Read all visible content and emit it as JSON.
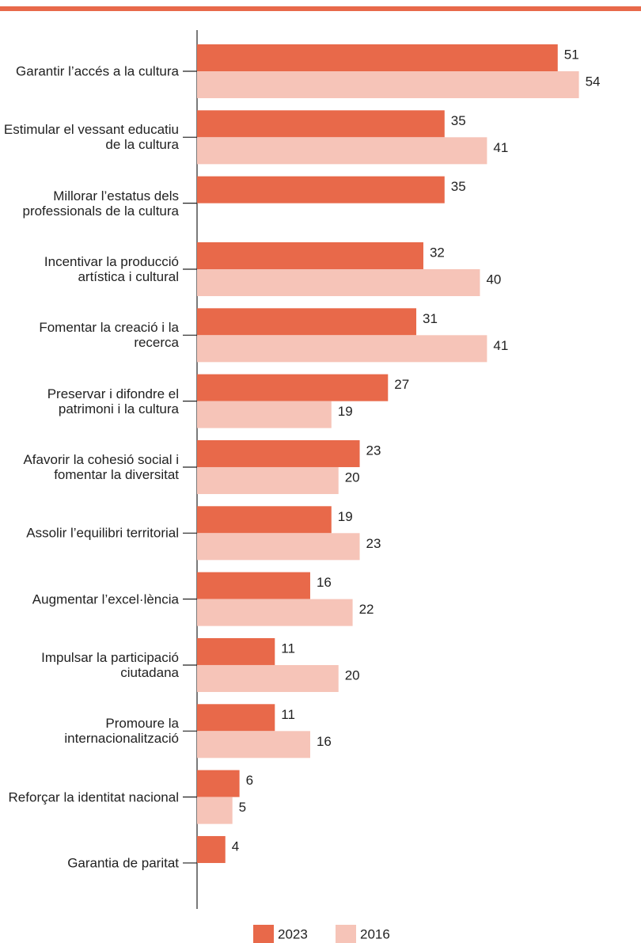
{
  "chart_data": {
    "type": "bar",
    "orientation": "horizontal",
    "categories": [
      "Garantir l’accés a la cultura",
      "Estimular el vessant educatiu de la cultura",
      "Millorar l’estatus dels professionals de la cultura",
      "Incentivar la producció artística i cultural",
      "Fomentar la creació i la recerca",
      "Preservar i difondre el patrimoni i la cultura",
      "Afavorir la cohesió social i fomentar la diversitat",
      "Assolir l’equilibri territorial",
      "Augmentar l’excel·lència",
      "Impulsar la participació ciutadana",
      "Promoure la internacionalització",
      "Reforçar la identitat nacional",
      "Garantia de paritat"
    ],
    "series": [
      {
        "name": "2023",
        "color": "#e8694a",
        "values": [
          51,
          35,
          35,
          32,
          31,
          27,
          23,
          19,
          16,
          11,
          11,
          6,
          4
        ]
      },
      {
        "name": "2016",
        "color": "#f6c4b8",
        "values": [
          54,
          41,
          null,
          40,
          41,
          19,
          20,
          23,
          22,
          20,
          16,
          5,
          null
        ]
      }
    ],
    "xlim": [
      0,
      63
    ],
    "legend": "bottom",
    "accent_color": "#e8694a"
  }
}
